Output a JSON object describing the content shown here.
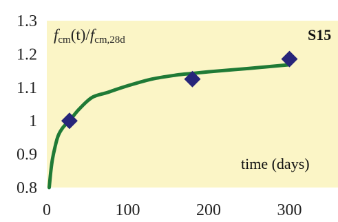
{
  "chart_data": {
    "type": "line",
    "ylabel": "fcm(t)/fcm,28d",
    "ylabel_parts": {
      "f1": "f",
      "sub1": "cm",
      "mid": "(t)/",
      "f2": "f",
      "sub2": "cm,28d"
    },
    "xlabel": "time (days)",
    "series_label": "S15",
    "xlim": [
      0,
      360
    ],
    "ylim": [
      0.8,
      1.3
    ],
    "x_ticks": [
      0,
      100,
      200,
      300
    ],
    "y_ticks": [
      0.8,
      0.9,
      1,
      1.1,
      1.2,
      1.3
    ],
    "y_tick_labels": [
      "0.8",
      "0.9",
      "1",
      "1.1",
      "1.2",
      "1.3"
    ],
    "grid": false,
    "colors": {
      "plot_background": "#fbf5c6",
      "curve": "#1f7a36",
      "marker": "#27257a"
    },
    "series": [
      {
        "kind": "fitted-curve",
        "x": [
          3,
          5,
          7,
          10,
          14,
          20,
          28,
          40,
          56,
          75,
          100,
          130,
          160,
          180,
          200,
          250,
          300
        ],
        "y": [
          0.8,
          0.85,
          0.885,
          0.92,
          0.955,
          0.98,
          1.0,
          1.035,
          1.07,
          1.085,
          1.105,
          1.125,
          1.137,
          1.142,
          1.147,
          1.157,
          1.168
        ]
      },
      {
        "kind": "measured",
        "x": [
          28,
          180,
          300
        ],
        "y": [
          1.0,
          1.125,
          1.185
        ]
      }
    ]
  }
}
